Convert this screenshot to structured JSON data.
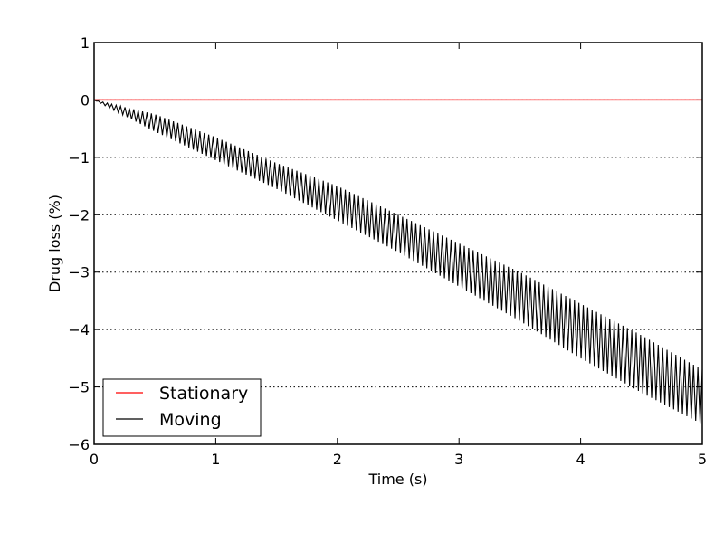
{
  "chart_data": {
    "type": "line",
    "title": "",
    "xlabel": "Time (s)",
    "ylabel": "Drug loss (%)",
    "xlim": [
      0,
      5
    ],
    "ylim": [
      -6,
      1
    ],
    "x_ticks": [
      0,
      1,
      2,
      3,
      4,
      5
    ],
    "x_tick_labels": [
      "0",
      "1",
      "2",
      "3",
      "4",
      "5"
    ],
    "y_ticks": [
      1,
      0,
      -1,
      -2,
      -3,
      -4,
      -5,
      -6
    ],
    "y_tick_labels": [
      "1",
      "0",
      "−1",
      "−2",
      "−3",
      "−4",
      "−5",
      "−6"
    ],
    "grid": "horizontal dotted",
    "legend_position": "lower-left",
    "series": [
      {
        "name": "Stationary",
        "color": "#ff0000",
        "x": [
          0,
          5
        ],
        "y": [
          0,
          0
        ]
      },
      {
        "name": "Moving",
        "color": "#000000",
        "oscillation": "dense oscillation around the mean trend",
        "x": [
          0,
          0.5,
          1,
          1.5,
          2,
          2.5,
          3,
          3.5,
          4,
          4.5,
          5
        ],
        "y_mean": [
          0,
          -0.4,
          -0.85,
          -1.3,
          -1.8,
          -2.35,
          -2.9,
          -3.45,
          -4.05,
          -4.6,
          -5.2
        ],
        "y_upper": [
          0,
          -0.25,
          -0.65,
          -1.1,
          -1.5,
          -2.0,
          -2.5,
          -3.0,
          -3.55,
          -4.1,
          -4.7
        ],
        "y_lower": [
          0,
          -0.55,
          -1.05,
          -1.55,
          -2.1,
          -2.65,
          -3.25,
          -3.85,
          -4.5,
          -5.1,
          -5.65
        ]
      }
    ]
  }
}
